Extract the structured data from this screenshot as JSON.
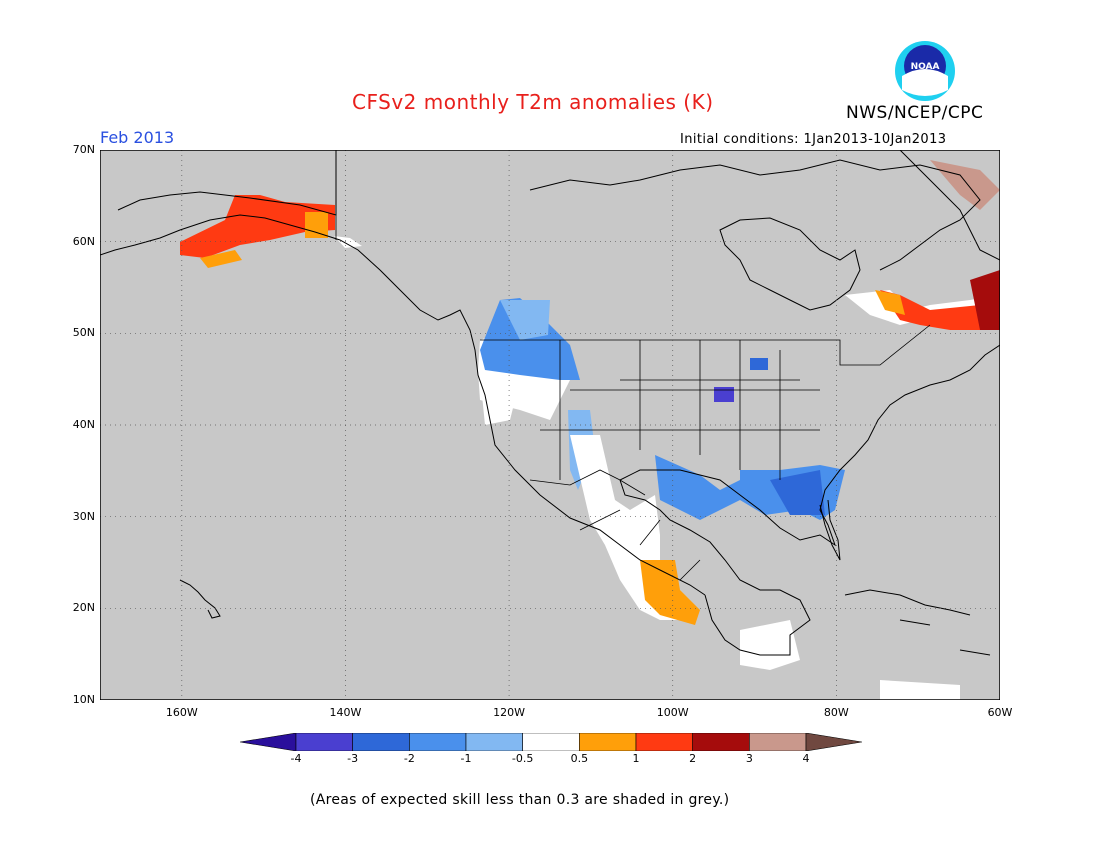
{
  "header": {
    "title": "CFSv2 monthly T2m anomalies (K)",
    "agency": "NWS/NCEP/CPC",
    "period": "Feb 2013",
    "initial_conditions": "Initial conditions: 1Jan2013-10Jan2013",
    "logo_text": "NOAA"
  },
  "axes": {
    "lat_labels": [
      "70N",
      "60N",
      "50N",
      "40N",
      "30N",
      "20N",
      "10N"
    ],
    "lon_labels": [
      "160W",
      "140W",
      "120W",
      "100W",
      "80W",
      "60W"
    ],
    "lat_range": [
      10,
      70
    ],
    "lon_range": [
      -170,
      -60
    ]
  },
  "colorbar": {
    "labels": [
      "-4",
      "-3",
      "-2",
      "-1",
      "-0.5",
      "0.5",
      "1",
      "2",
      "3",
      "4"
    ],
    "colors": [
      "#2a0f9c",
      "#4a3fd0",
      "#2e68d8",
      "#4a90ec",
      "#82b8f2",
      "#ffffff",
      "#ff9f0a",
      "#ff3a12",
      "#a50c0c",
      "#c9988c",
      "#704840"
    ]
  },
  "footer": {
    "note": "(Areas of expected skill less than 0.3 are shaded in grey.)"
  },
  "colors": {
    "no_skill_grey": "#c8c8c8",
    "title_red": "#e8201c",
    "date_blue": "#2a50e0"
  }
}
